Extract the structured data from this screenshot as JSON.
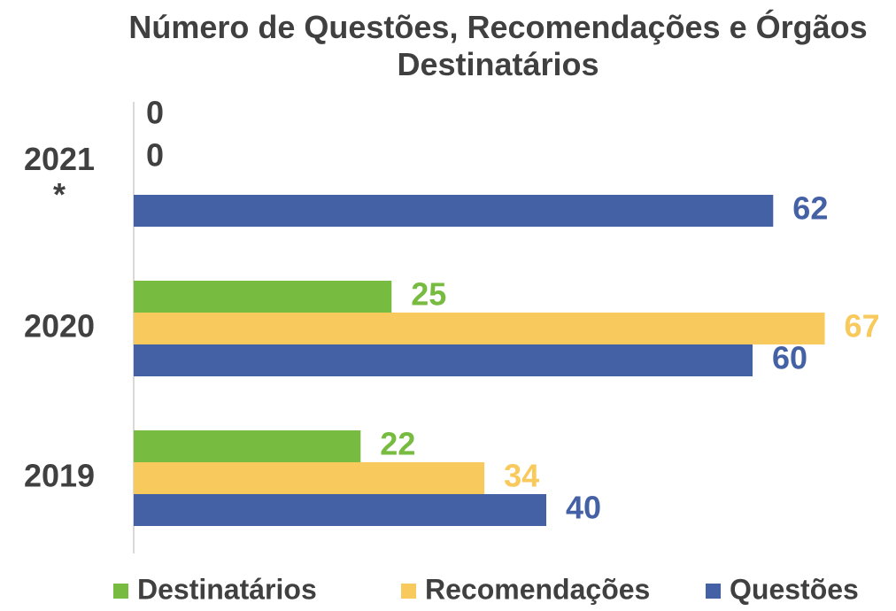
{
  "chart_data": {
    "type": "hbar",
    "title": "Número de Questões, Recomendações e Órgãos Destinatários",
    "categories": [
      "2019",
      "2020",
      "2021 *"
    ],
    "series": [
      {
        "name": "Destinatários",
        "color": "#77bc41",
        "values": [
          22,
          25,
          0
        ]
      },
      {
        "name": "Recomendações",
        "color": "#f8c95c",
        "values": [
          34,
          67,
          0
        ]
      },
      {
        "name": "Questões",
        "color": "#4561a5",
        "values": [
          40,
          60,
          62
        ]
      }
    ],
    "xlim": [
      0,
      72
    ],
    "legend": "bottom"
  }
}
